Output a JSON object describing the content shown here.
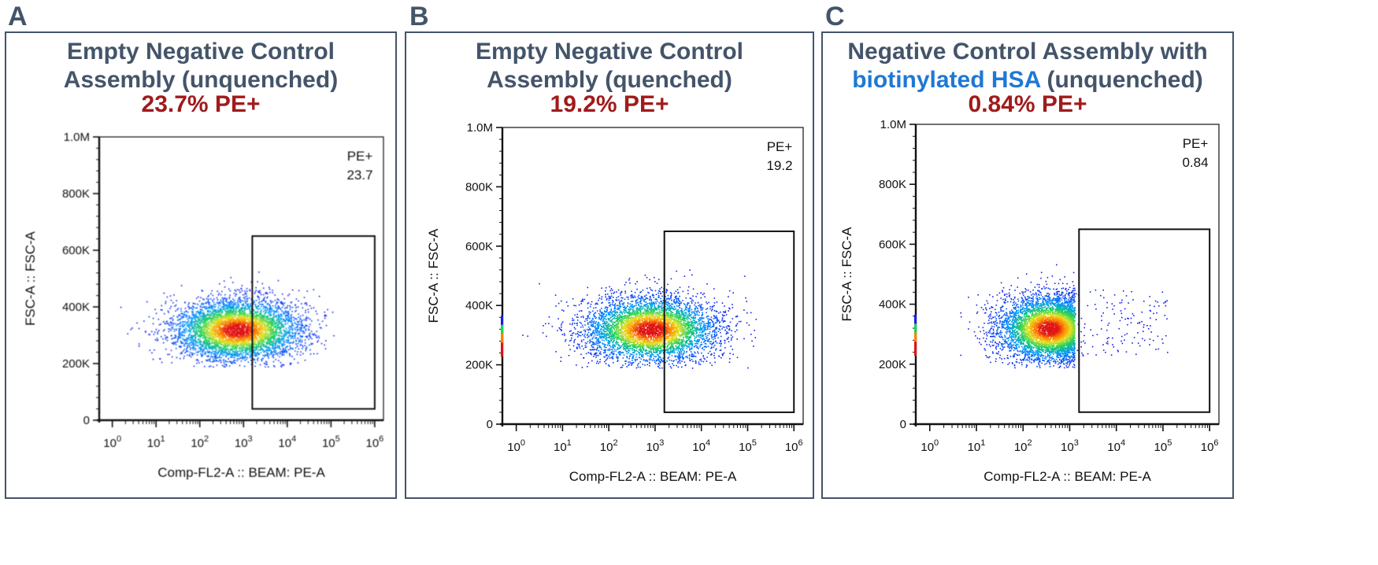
{
  "panels": [
    {
      "letter": "A",
      "title_line1": "Empty Negative Control",
      "title_line2": "Assembly (unquenched)",
      "percent": "23.7% PE+",
      "gate_name": "PE+",
      "gate_value": "23.7",
      "blurred": true
    },
    {
      "letter": "B",
      "title_line1": "Empty Negative Control",
      "title_line2": "Assembly (quenched)",
      "percent": "19.2% PE+",
      "gate_name": "PE+",
      "gate_value": "19.2",
      "blurred": false
    },
    {
      "letter": "C",
      "title_line1": "Negative Control Assembly with",
      "title_line2_highlight": "biotinylated HSA",
      "title_line2_rest": " (unquenched)",
      "percent": "0.84% PE+",
      "gate_name": "PE+",
      "gate_value": "0.84",
      "blurred": false
    }
  ],
  "colors": {
    "panel_border": "#44546a",
    "title": "#44546a",
    "highlight": "#1f78d4",
    "percent": "#a01b1b"
  },
  "chart_data": [
    {
      "type": "scatter",
      "title": "Empty Negative Control Assembly (unquenched)",
      "xlabel": "Comp-FL2-A :: BEAM: PE-A",
      "ylabel": "FSC-A :: FSC-A",
      "x_scale": "log",
      "xlim_decades": [
        -0.3,
        6.2
      ],
      "ylim": [
        0,
        1000000
      ],
      "x_tick_labels": [
        "10^0",
        "10^1",
        "10^2",
        "10^3",
        "10^4",
        "10^5",
        "10^6"
      ],
      "y_ticks": [
        0,
        200000,
        400000,
        600000,
        800000,
        1000000
      ],
      "y_tick_labels": [
        "0",
        "200K",
        "400K",
        "600K",
        "800K",
        "1.0M"
      ],
      "gate": {
        "name": "PE+",
        "percent": 23.7,
        "x_min_decade": 3.2,
        "x_max_decade": 6.0,
        "y_min": 40000,
        "y_max": 650000
      },
      "population": {
        "center_log_x": 2.85,
        "spread_log_x": 0.75,
        "center_y": 320000,
        "spread_y": 55000,
        "min_y": 190000,
        "max_y": 540000,
        "x_cap_decade": 5.2,
        "n_points": 5200
      }
    },
    {
      "type": "scatter",
      "title": "Empty Negative Control Assembly (quenched)",
      "xlabel": "Comp-FL2-A :: BEAM: PE-A",
      "ylabel": "FSC-A :: FSC-A",
      "x_scale": "log",
      "xlim_decades": [
        -0.3,
        6.2
      ],
      "ylim": [
        0,
        1000000
      ],
      "x_tick_labels": [
        "10^0",
        "10^1",
        "10^2",
        "10^3",
        "10^4",
        "10^5",
        "10^6"
      ],
      "y_ticks": [
        0,
        200000,
        400000,
        600000,
        800000,
        1000000
      ],
      "y_tick_labels": [
        "0",
        "200K",
        "400K",
        "600K",
        "800K",
        "1.0M"
      ],
      "gate": {
        "name": "PE+",
        "percent": 19.2,
        "x_min_decade": 3.2,
        "x_max_decade": 6.0,
        "y_min": 40000,
        "y_max": 650000
      },
      "population": {
        "center_log_x": 2.9,
        "spread_log_x": 0.72,
        "center_y": 320000,
        "spread_y": 55000,
        "min_y": 190000,
        "max_y": 535000,
        "x_cap_decade": 5.3,
        "n_points": 5200
      }
    },
    {
      "type": "scatter",
      "title": "Negative Control Assembly with biotinylated HSA (unquenched)",
      "xlabel": "Comp-FL2-A :: BEAM: PE-A",
      "ylabel": "FSC-A :: FSC-A",
      "x_scale": "log",
      "xlim_decades": [
        -0.3,
        6.2
      ],
      "ylim": [
        0,
        1000000
      ],
      "x_tick_labels": [
        "10^0",
        "10^1",
        "10^2",
        "10^3",
        "10^4",
        "10^5",
        "10^6"
      ],
      "y_ticks": [
        0,
        200000,
        400000,
        600000,
        800000,
        1000000
      ],
      "y_tick_labels": [
        "0",
        "200K",
        "400K",
        "600K",
        "800K",
        "1.0M"
      ],
      "gate": {
        "name": "PE+",
        "percent": 0.84,
        "x_min_decade": 3.2,
        "x_max_decade": 6.0,
        "y_min": 40000,
        "y_max": 650000
      },
      "population": {
        "center_log_x": 2.55,
        "spread_log_x": 0.55,
        "center_y": 320000,
        "spread_y": 55000,
        "min_y": 190000,
        "max_y": 535000,
        "x_cap_decade": 3.1,
        "n_points": 5200,
        "sparse_tail_points": 140
      }
    }
  ]
}
